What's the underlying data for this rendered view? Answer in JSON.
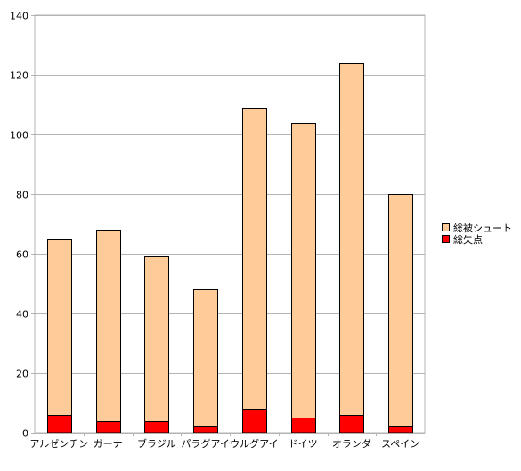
{
  "chart_data": {
    "type": "bar",
    "stacked": false,
    "overlapped": true,
    "title": "",
    "xlabel": "",
    "ylabel": "",
    "ylim": [
      0,
      140
    ],
    "yticks": [
      0,
      20,
      40,
      60,
      80,
      100,
      120,
      140
    ],
    "grid": true,
    "legend_position": "right",
    "categories": [
      "アルゼンチン",
      "ガーナ",
      "ブラジル",
      "パラグアイ",
      "ウルグアイ",
      "ドイツ",
      "オランダ",
      "スペイン"
    ],
    "series": [
      {
        "name": "総被シュート",
        "color": "#ffcc99",
        "values": [
          65,
          68,
          59,
          48,
          109,
          104,
          124,
          80
        ]
      },
      {
        "name": "総失点",
        "color": "#ff0000",
        "values": [
          6,
          4,
          4,
          2,
          8,
          5,
          6,
          2
        ]
      }
    ],
    "colors": {
      "plot_border": "#b3b3b3",
      "gridline": "#b3b3b3",
      "bar_outline": "#000000"
    }
  }
}
